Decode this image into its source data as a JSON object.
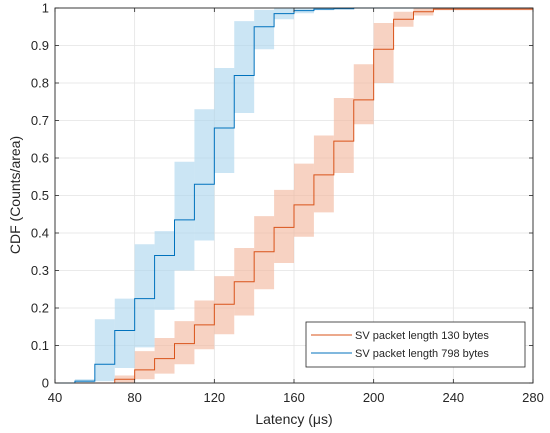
{
  "chart_data": {
    "type": "line",
    "title": "",
    "xlabel": "Latency (μs)",
    "ylabel": "CDF (Counts/area)",
    "xlim": [
      40,
      280
    ],
    "ylim": [
      0,
      1
    ],
    "xticks": [
      40,
      80,
      120,
      160,
      200,
      240,
      280
    ],
    "yticks": [
      0,
      0.1,
      0.2,
      0.3,
      0.4,
      0.5,
      0.6,
      0.7,
      0.8,
      0.9,
      1
    ],
    "xtick_labels": [
      "40",
      "80",
      "120",
      "160",
      "200",
      "240",
      "280"
    ],
    "ytick_labels": [
      "0",
      "0.1",
      "0.2",
      "0.3",
      "0.4",
      "0.5",
      "0.6",
      "0.7",
      "0.8",
      "0.9",
      "1"
    ],
    "grid": true,
    "legend_position": "bottom-right",
    "series": [
      {
        "name": "SV packet length 130 bytes",
        "color": "#d95319",
        "band_color": "#f2b49a",
        "x": [
          70,
          80,
          90,
          100,
          110,
          120,
          130,
          140,
          150,
          160,
          170,
          180,
          190,
          200,
          210,
          220,
          230,
          280
        ],
        "y": [
          0.01,
          0.035,
          0.065,
          0.105,
          0.155,
          0.21,
          0.27,
          0.35,
          0.415,
          0.475,
          0.555,
          0.645,
          0.755,
          0.89,
          0.97,
          0.99,
          0.997,
          1.0
        ],
        "y_low": [
          0,
          0.01,
          0.025,
          0.05,
          0.09,
          0.13,
          0.18,
          0.25,
          0.32,
          0.39,
          0.455,
          0.56,
          0.69,
          0.8,
          0.95,
          0.98,
          0.994,
          1.0
        ],
        "y_high": [
          0.02,
          0.085,
          0.12,
          0.165,
          0.22,
          0.285,
          0.36,
          0.445,
          0.515,
          0.585,
          0.66,
          0.76,
          0.85,
          0.96,
          0.99,
          1.0,
          1.0,
          1.0
        ]
      },
      {
        "name": "SV packet length 798 bytes",
        "color": "#0072bd",
        "band_color": "#a9d3ec",
        "x": [
          50,
          60,
          70,
          80,
          90,
          100,
          110,
          120,
          130,
          140,
          150,
          160,
          170,
          180,
          190,
          280
        ],
        "y": [
          0.005,
          0.05,
          0.14,
          0.225,
          0.34,
          0.435,
          0.53,
          0.68,
          0.82,
          0.95,
          0.985,
          0.993,
          0.997,
          0.998,
          1.0,
          1.0
        ],
        "y_low": [
          0,
          0.005,
          0.04,
          0.095,
          0.195,
          0.3,
          0.38,
          0.56,
          0.72,
          0.89,
          0.97,
          0.986,
          0.994,
          0.997,
          1.0,
          1.0
        ],
        "y_high": [
          0.01,
          0.17,
          0.225,
          0.37,
          0.405,
          0.59,
          0.73,
          0.84,
          0.965,
          0.995,
          1.0,
          1.0,
          1.0,
          1.0,
          1.0,
          1.0
        ]
      }
    ]
  }
}
